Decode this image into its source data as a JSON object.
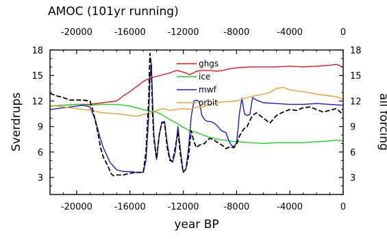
{
  "chart_data": {
    "type": "line",
    "title": "AMOC (101yr running)",
    "xlabel": "year BP",
    "ylabel": "Sverdrups",
    "ylabel_right": "all forcing",
    "xlim": [
      -22000,
      0
    ],
    "ylim": [
      1,
      18
    ],
    "x_reversed_sign": false,
    "x_ticks": [
      -20000,
      -16000,
      -12000,
      -8000,
      -4000,
      0
    ],
    "x_tick_labels": [
      "-20000",
      "-16000",
      "-12000",
      "-8000",
      "-4000",
      "0"
    ],
    "y_ticks": [
      3,
      6,
      9,
      12,
      15,
      18
    ],
    "y_tick_labels": [
      "3",
      "6",
      "9",
      "12",
      "15",
      "18"
    ],
    "grid": false,
    "legend_position": "top-center",
    "series": [
      {
        "name": "ghgs",
        "color": "#e8141b",
        "dash": "solid",
        "x": [
          -22000,
          -21000,
          -20000,
          -19000,
          -18000,
          -17000,
          -16500,
          -16000,
          -15500,
          -15000,
          -14500,
          -14000,
          -13500,
          -13000,
          -12500,
          -12000,
          -11500,
          -11000,
          -10500,
          -10000,
          -9500,
          -9000,
          -8500,
          -8000,
          -7000,
          -6000,
          -5000,
          -4000,
          -3000,
          -2000,
          -1000,
          -500,
          0
        ],
        "y": [
          11.4,
          11.5,
          11.6,
          11.6,
          11.8,
          12.0,
          12.6,
          13.1,
          13.7,
          14.3,
          14.7,
          14.9,
          15.1,
          15.3,
          15.6,
          15.4,
          15.1,
          15.5,
          15.6,
          15.6,
          15.5,
          15.6,
          15.8,
          15.9,
          16.0,
          16.0,
          16.0,
          16.1,
          16.0,
          16.1,
          16.2,
          16.3,
          16.0
        ]
      },
      {
        "name": "ice",
        "color": "#19d61a",
        "dash": "solid",
        "x": [
          -22000,
          -21000,
          -20000,
          -19000,
          -18000,
          -17000,
          -16000,
          -15500,
          -15000,
          -14500,
          -14000,
          -13500,
          -13000,
          -12500,
          -12000,
          -11500,
          -11000,
          -10500,
          -10000,
          -9500,
          -9000,
          -8500,
          -8000,
          -7000,
          -6000,
          -5000,
          -4000,
          -3000,
          -2000,
          -1000,
          -500,
          0
        ],
        "y": [
          11.4,
          11.5,
          11.6,
          11.5,
          11.6,
          11.6,
          11.4,
          11.2,
          11.0,
          10.8,
          10.7,
          10.3,
          9.8,
          9.4,
          8.9,
          8.5,
          8.3,
          8.0,
          7.7,
          7.5,
          7.4,
          7.3,
          7.2,
          7.1,
          7.0,
          7.1,
          7.1,
          7.1,
          7.2,
          7.3,
          7.4,
          7.3
        ]
      },
      {
        "name": "mwf",
        "color": "#1818e0",
        "dash": "solid",
        "x": [
          -22000,
          -21000,
          -20000,
          -19500,
          -19000,
          -18600,
          -18300,
          -18000,
          -17500,
          -17000,
          -16500,
          -16000,
          -15500,
          -15000,
          -14800,
          -14600,
          -14500,
          -14400,
          -14300,
          -14200,
          -14000,
          -13800,
          -13600,
          -13400,
          -13200,
          -13000,
          -12800,
          -12600,
          -12400,
          -12200,
          -12000,
          -11800,
          -11600,
          -11400,
          -11200,
          -11000,
          -10800,
          -10600,
          -10400,
          -10200,
          -10000,
          -9800,
          -9600,
          -9400,
          -9200,
          -9000,
          -8800,
          -8600,
          -8400,
          -8200,
          -8000,
          -7900,
          -7800,
          -7600,
          -7400,
          -7200,
          -7000,
          -6800,
          -6500,
          -6000,
          -5000,
          -4000,
          -3000,
          -2000,
          -1000,
          0
        ],
        "y": [
          11.0,
          11.2,
          11.4,
          11.5,
          11.3,
          9.8,
          8.0,
          6.5,
          4.8,
          3.9,
          3.7,
          3.7,
          3.6,
          3.6,
          5.0,
          10.0,
          14.5,
          16.5,
          12.0,
          8.0,
          5.1,
          8.0,
          9.5,
          9.6,
          7.0,
          5.2,
          4.8,
          6.0,
          9.0,
          6.0,
          3.6,
          4.0,
          6.5,
          10.2,
          12.0,
          12.1,
          11.9,
          10.3,
          9.8,
          9.6,
          9.6,
          9.5,
          9.3,
          9.0,
          8.6,
          8.4,
          8.3,
          7.4,
          6.8,
          6.6,
          7.1,
          8.5,
          10.4,
          12.3,
          10.5,
          10.3,
          10.4,
          12.4,
          12.1,
          11.8,
          11.7,
          11.6,
          11.6,
          11.7,
          11.6,
          11.5
        ]
      },
      {
        "name": "orbit",
        "color": "#f0a02a",
        "dash": "solid",
        "x": [
          -22000,
          -21000,
          -20000,
          -19000,
          -18000,
          -17000,
          -16000,
          -15500,
          -15000,
          -14500,
          -14000,
          -13500,
          -13000,
          -12500,
          -12000,
          -11500,
          -11000,
          -10500,
          -10000,
          -9500,
          -9000,
          -8000,
          -7000,
          -6000,
          -5500,
          -5000,
          -4500,
          -4000,
          -3000,
          -2000,
          -1000,
          -500,
          0
        ],
        "y": [
          11.5,
          11.3,
          11.1,
          10.9,
          10.6,
          10.5,
          10.3,
          10.2,
          10.4,
          10.5,
          10.9,
          11.1,
          10.9,
          11.0,
          11.1,
          11.0,
          11.3,
          11.3,
          11.6,
          11.8,
          11.9,
          12.0,
          12.5,
          12.8,
          13.0,
          13.5,
          13.6,
          13.3,
          13.1,
          12.8,
          12.6,
          12.5,
          12.2
        ]
      },
      {
        "name": "",
        "color": "#000000",
        "dash": "dashed",
        "x": [
          -22000,
          -21500,
          -21000,
          -20500,
          -20000,
          -19500,
          -19000,
          -18800,
          -18500,
          -18200,
          -18000,
          -17700,
          -17400,
          -17200,
          -17000,
          -16500,
          -16000,
          -15500,
          -15000,
          -14800,
          -14600,
          -14500,
          -14400,
          -14300,
          -14200,
          -14000,
          -13800,
          -13600,
          -13400,
          -13200,
          -13000,
          -12800,
          -12600,
          -12400,
          -12200,
          -12000,
          -11800,
          -11600,
          -11400,
          -11200,
          -11000,
          -10800,
          -10600,
          -10400,
          -10200,
          -10000,
          -9800,
          -9500,
          -9200,
          -9000,
          -8800,
          -8500,
          -8200,
          -8000,
          -7800,
          -7600,
          -7400,
          -7200,
          -7000,
          -6800,
          -6500,
          -6000,
          -5500,
          -5000,
          -4500,
          -4000,
          -3500,
          -3000,
          -2500,
          -2000,
          -1500,
          -1000,
          -500,
          0
        ],
        "y": [
          12.9,
          12.6,
          12.4,
          12.1,
          12.1,
          12.1,
          12.0,
          11.0,
          9.0,
          6.5,
          5.4,
          4.5,
          3.4,
          3.2,
          3.3,
          3.3,
          3.5,
          3.6,
          3.6,
          6.0,
          12.0,
          17.6,
          16.0,
          10.5,
          7.5,
          5.2,
          8.0,
          9.5,
          9.4,
          6.5,
          5.0,
          4.9,
          6.5,
          8.4,
          5.5,
          3.6,
          4.0,
          5.5,
          8.5,
          7.2,
          6.5,
          6.8,
          6.9,
          7.0,
          7.4,
          7.6,
          7.5,
          7.2,
          6.9,
          6.7,
          6.4,
          6.6,
          6.5,
          6.9,
          7.8,
          8.4,
          8.8,
          9.0,
          9.7,
          10.3,
          10.6,
          10.0,
          9.4,
          10.3,
          10.7,
          11.0,
          10.9,
          11.2,
          11.3,
          11.0,
          10.7,
          10.9,
          11.1,
          10.4
        ]
      }
    ]
  }
}
